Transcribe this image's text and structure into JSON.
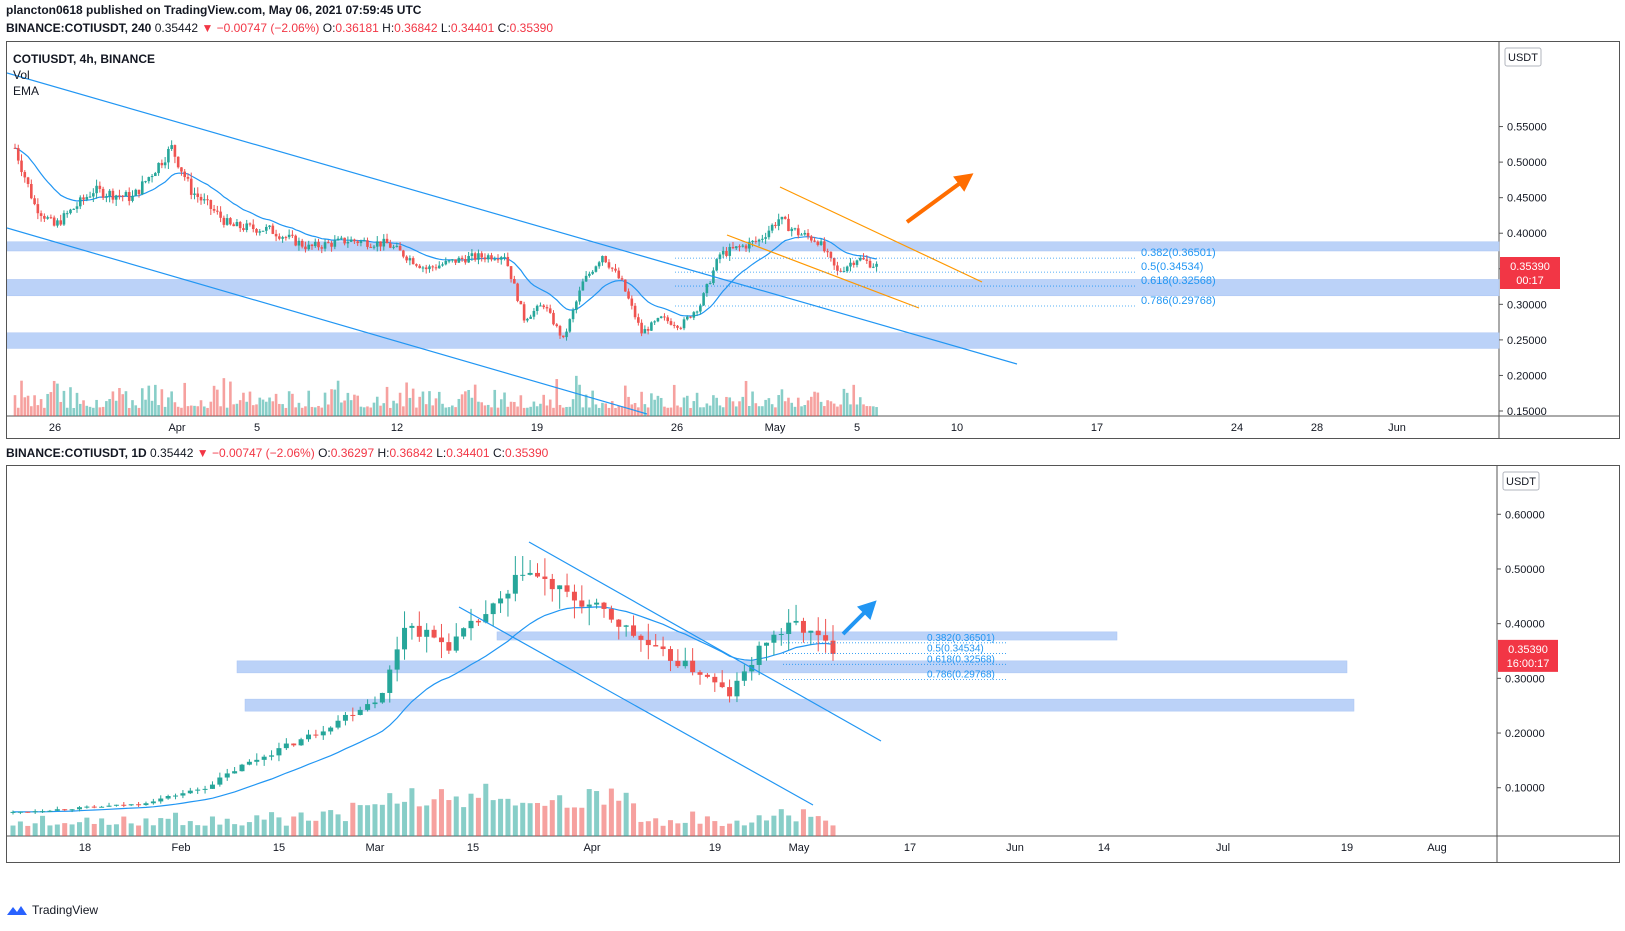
{
  "publish_line": "plancton0618 published on TradingView.com, May 06, 2021 07:59:45 UTC",
  "top": {
    "header": {
      "symbol": "BINANCE:COTIUSDT, 240",
      "last": "0.35442",
      "change": "▼ −0.00747 (−2.06%)",
      "o_label": "O:",
      "o": "0.36181",
      "h_label": "H:",
      "h": "0.36842",
      "l_label": "L:",
      "l": "0.34401",
      "c_label": "C:",
      "c": "0.35390"
    },
    "legend_title": "COTIUSDT, 4h, BINANCE",
    "legend_vol": "Vol",
    "legend_ema": "EMA",
    "currency": "USDT",
    "price_tag": "0.35390",
    "countdown": "00:17"
  },
  "bottom": {
    "header": {
      "symbol": "BINANCE:COTIUSDT, 1D",
      "last": "0.35442",
      "change": "▼ −0.00747 (−2.06%)",
      "o_label": "O:",
      "o": "0.36297",
      "h_label": "H:",
      "h": "0.36842",
      "l_label": "L:",
      "l": "0.34401",
      "c_label": "C:",
      "c": "0.35390"
    },
    "currency": "USDT",
    "price_tag": "0.35390",
    "countdown": "16:00:17"
  },
  "footer_brand": "TradingView",
  "colors": {
    "up": "#26a69a",
    "down": "#ef5350",
    "ema": "#2196f3",
    "zone": "#bbd2f8",
    "orange": "#ff9800",
    "arrow_orange": "#ff6d00",
    "arrow_blue": "#2196f3",
    "fib": "#2196f3",
    "tag": "#f23645"
  },
  "chart_data": [
    {
      "type": "candlestick",
      "title": "COTIUSDT, 4h, BINANCE",
      "ylim": [
        0.15,
        0.6
      ],
      "y_ticks": [
        "0.55000",
        "0.50000",
        "0.45000",
        "0.40000",
        "0.35000",
        "0.30000",
        "0.25000",
        "0.20000",
        "0.15000"
      ],
      "x_ticks": [
        "26",
        "Apr",
        "5",
        "12",
        "19",
        "26",
        "May",
        "5",
        "10",
        "17",
        "24",
        "28",
        "Jun"
      ],
      "close_path": [
        {
          "date": "2021-03-23",
          "close": 0.52
        },
        {
          "date": "2021-03-24",
          "close": 0.44
        },
        {
          "date": "2021-03-25",
          "close": 0.41
        },
        {
          "date": "2021-03-27",
          "close": 0.46
        },
        {
          "date": "2021-03-29",
          "close": 0.45
        },
        {
          "date": "2021-03-31",
          "close": 0.52
        },
        {
          "date": "2021-04-01",
          "close": 0.46
        },
        {
          "date": "2021-04-03",
          "close": 0.41
        },
        {
          "date": "2021-04-05",
          "close": 0.405
        },
        {
          "date": "2021-04-07",
          "close": 0.38
        },
        {
          "date": "2021-04-09",
          "close": 0.39
        },
        {
          "date": "2021-04-11",
          "close": 0.385
        },
        {
          "date": "2021-04-13",
          "close": 0.35
        },
        {
          "date": "2021-04-15",
          "close": 0.365
        },
        {
          "date": "2021-04-17",
          "close": 0.37
        },
        {
          "date": "2021-04-18",
          "close": 0.28
        },
        {
          "date": "2021-04-19",
          "close": 0.3
        },
        {
          "date": "2021-04-20",
          "close": 0.25
        },
        {
          "date": "2021-04-21",
          "close": 0.33
        },
        {
          "date": "2021-04-22",
          "close": 0.37
        },
        {
          "date": "2021-04-23",
          "close": 0.33
        },
        {
          "date": "2021-04-24",
          "close": 0.26
        },
        {
          "date": "2021-04-25",
          "close": 0.28
        },
        {
          "date": "2021-04-26",
          "close": 0.27
        },
        {
          "date": "2021-04-27",
          "close": 0.3
        },
        {
          "date": "2021-04-28",
          "close": 0.37
        },
        {
          "date": "2021-04-29",
          "close": 0.38
        },
        {
          "date": "2021-04-30",
          "close": 0.39
        },
        {
          "date": "2021-05-01",
          "close": 0.42
        },
        {
          "date": "2021-05-02",
          "close": 0.4
        },
        {
          "date": "2021-05-03",
          "close": 0.39
        },
        {
          "date": "2021-05-04",
          "close": 0.345
        },
        {
          "date": "2021-05-05",
          "close": 0.365
        },
        {
          "date": "2021-05-06",
          "close": 0.354
        }
      ],
      "zones": [
        [
          0.375,
          0.388
        ],
        [
          0.312,
          0.335
        ],
        [
          0.238,
          0.26
        ]
      ],
      "fib_levels": [
        {
          "label": "0.382(0.36501)",
          "value": 0.36501
        },
        {
          "label": "0.5(0.34534)",
          "value": 0.34534
        },
        {
          "label": "0.618(0.32568)",
          "value": 0.32568
        },
        {
          "label": "0.786(0.29768)",
          "value": 0.29768
        }
      ]
    },
    {
      "type": "candlestick",
      "title": "BINANCE:COTIUSDT, 1D",
      "ylim": [
        0.03,
        0.67
      ],
      "y_ticks": [
        "0.60000",
        "0.50000",
        "0.40000",
        "0.30000",
        "0.20000",
        "0.10000"
      ],
      "x_ticks": [
        "18",
        "Feb",
        "15",
        "Mar",
        "15",
        "Apr",
        "19",
        "May",
        "17",
        "Jun",
        "14",
        "Jul",
        "19",
        "Aug"
      ],
      "close_path": [
        {
          "date": "2021-01-15",
          "close": 0.055
        },
        {
          "date": "2021-02-01",
          "close": 0.07
        },
        {
          "date": "2021-02-10",
          "close": 0.1
        },
        {
          "date": "2021-02-15",
          "close": 0.14
        },
        {
          "date": "2021-02-25",
          "close": 0.2
        },
        {
          "date": "2021-03-06",
          "close": 0.27
        },
        {
          "date": "2021-03-09",
          "close": 0.4
        },
        {
          "date": "2021-03-15",
          "close": 0.36
        },
        {
          "date": "2021-03-23",
          "close": 0.45
        },
        {
          "date": "2021-03-25",
          "close": 0.5
        },
        {
          "date": "2021-03-31",
          "close": 0.45
        },
        {
          "date": "2021-04-05",
          "close": 0.42
        },
        {
          "date": "2021-04-12",
          "close": 0.35
        },
        {
          "date": "2021-04-18",
          "close": 0.31
        },
        {
          "date": "2021-04-22",
          "close": 0.27
        },
        {
          "date": "2021-04-27",
          "close": 0.37
        },
        {
          "date": "2021-05-01",
          "close": 0.4
        },
        {
          "date": "2021-05-06",
          "close": 0.354
        }
      ],
      "zones": [
        [
          0.37,
          0.385
        ],
        [
          0.31,
          0.332
        ],
        [
          0.24,
          0.262
        ]
      ],
      "fib_levels": [
        {
          "label": "0.382(0.36501)",
          "value": 0.36501
        },
        {
          "label": "0.5(0.34534)",
          "value": 0.34534
        },
        {
          "label": "0.618(0.32568)",
          "value": 0.32568
        },
        {
          "label": "0.786(0.29768)",
          "value": 0.29768
        }
      ]
    }
  ]
}
